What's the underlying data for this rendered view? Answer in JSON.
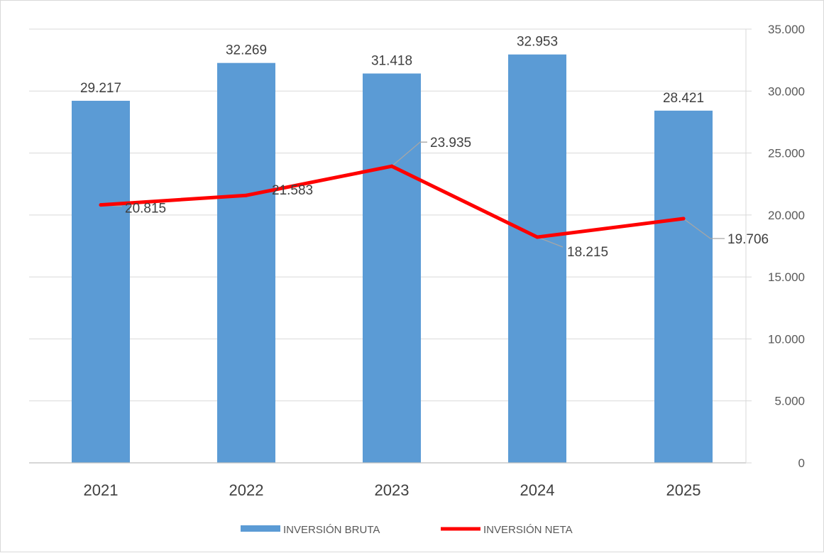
{
  "chart_data": {
    "type": "bar",
    "categories": [
      "2021",
      "2022",
      "2023",
      "2024",
      "2025"
    ],
    "series": [
      {
        "name": "INVERSIÓN BRUTA",
        "kind": "bar",
        "color": "#5b9bd5",
        "values": [
          29217,
          32269,
          31418,
          32953,
          28421
        ],
        "labels": [
          "29.217",
          "32.269",
          "31.418",
          "32.953",
          "28.421"
        ]
      },
      {
        "name": "INVERSIÓN NETA",
        "kind": "line",
        "color": "#ff0000",
        "values": [
          20815,
          21583,
          23935,
          18215,
          19706
        ],
        "labels": [
          "20.815",
          "21.583",
          "23.935",
          "18.215",
          "19.706"
        ]
      }
    ],
    "y_axis": {
      "side": "right",
      "min": 0,
      "max": 35000,
      "ticks": [
        0,
        5000,
        10000,
        15000,
        20000,
        25000,
        30000,
        35000
      ],
      "tick_labels": [
        "0",
        "5.000",
        "10.000",
        "15.000",
        "20.000",
        "25.000",
        "30.000",
        "35.000"
      ]
    },
    "grid": true,
    "legend_position": "bottom",
    "label_leader_color": "#a6a6a6",
    "grid_color": "#d9d9d9"
  }
}
